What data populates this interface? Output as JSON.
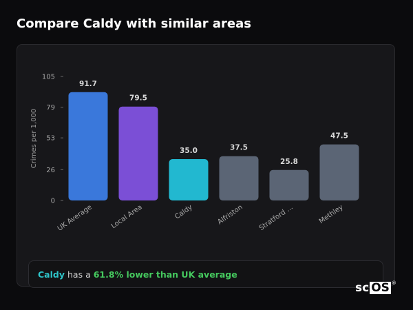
{
  "page": {
    "title": "Compare Caldy with similar areas"
  },
  "chart_data": {
    "type": "bar",
    "title": "",
    "xlabel": "",
    "ylabel": "Crimes per 1,000",
    "ylim": [
      0,
      105
    ],
    "yticks": [
      0,
      26,
      53,
      79,
      105
    ],
    "categories": [
      "UK Average",
      "Local Area",
      "Caldy",
      "Alfriston",
      "Stratford ...",
      "Methley"
    ],
    "values": [
      91.7,
      79.5,
      35.0,
      37.5,
      25.8,
      47.5
    ],
    "value_labels": [
      "91.7",
      "79.5",
      "35.0",
      "37.5",
      "25.8",
      "47.5"
    ],
    "colors": [
      "#3a78db",
      "#7b4fd6",
      "#22b8d0",
      "#5b6575",
      "#5b6575",
      "#5b6575"
    ],
    "grid": false,
    "legend": "none"
  },
  "callout": {
    "area": "Caldy",
    "middle": "has a",
    "difference": "61.8% lower than UK average"
  },
  "brand": {
    "prefix": "sc",
    "boxed": "OS",
    "mark": "®"
  }
}
